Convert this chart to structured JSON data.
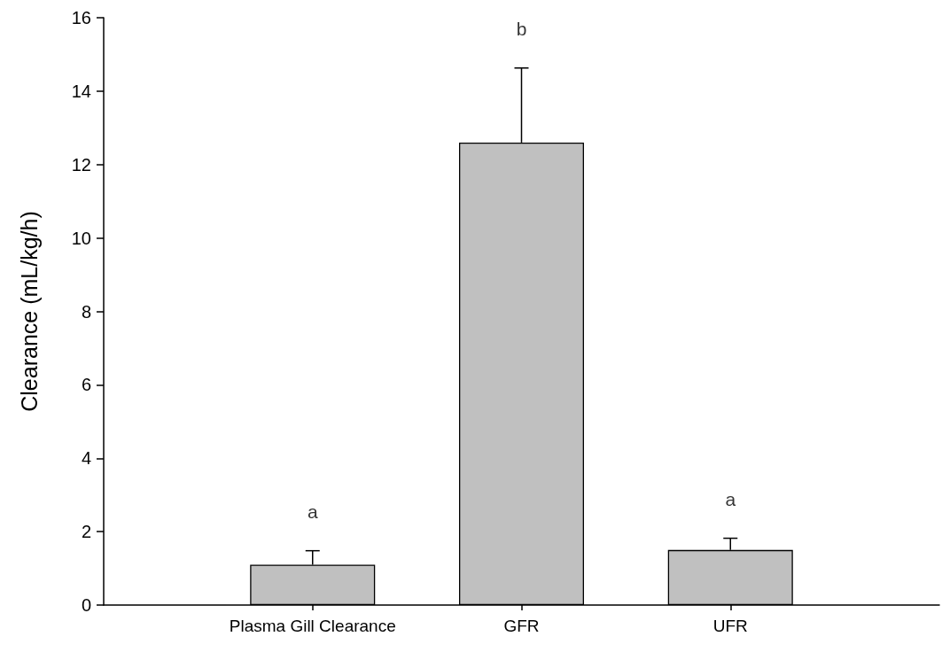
{
  "chart_data": {
    "type": "bar",
    "ylabel": "Clearance (mL/kg/h)",
    "categories": [
      "Plasma Gill Clearance",
      "GFR",
      "UFR"
    ],
    "values": [
      1.1,
      12.6,
      1.5
    ],
    "errors": [
      [
        1.1,
        1.48
      ],
      [
        12.6,
        14.63
      ],
      [
        1.5,
        1.82
      ]
    ],
    "color": "#c0c0c0",
    "ylim": [
      0,
      16
    ],
    "yticks": [
      0,
      2,
      4,
      6,
      8,
      10,
      12,
      14,
      16
    ],
    "grid": false,
    "annotations": [
      "a",
      "b",
      "a"
    ]
  }
}
